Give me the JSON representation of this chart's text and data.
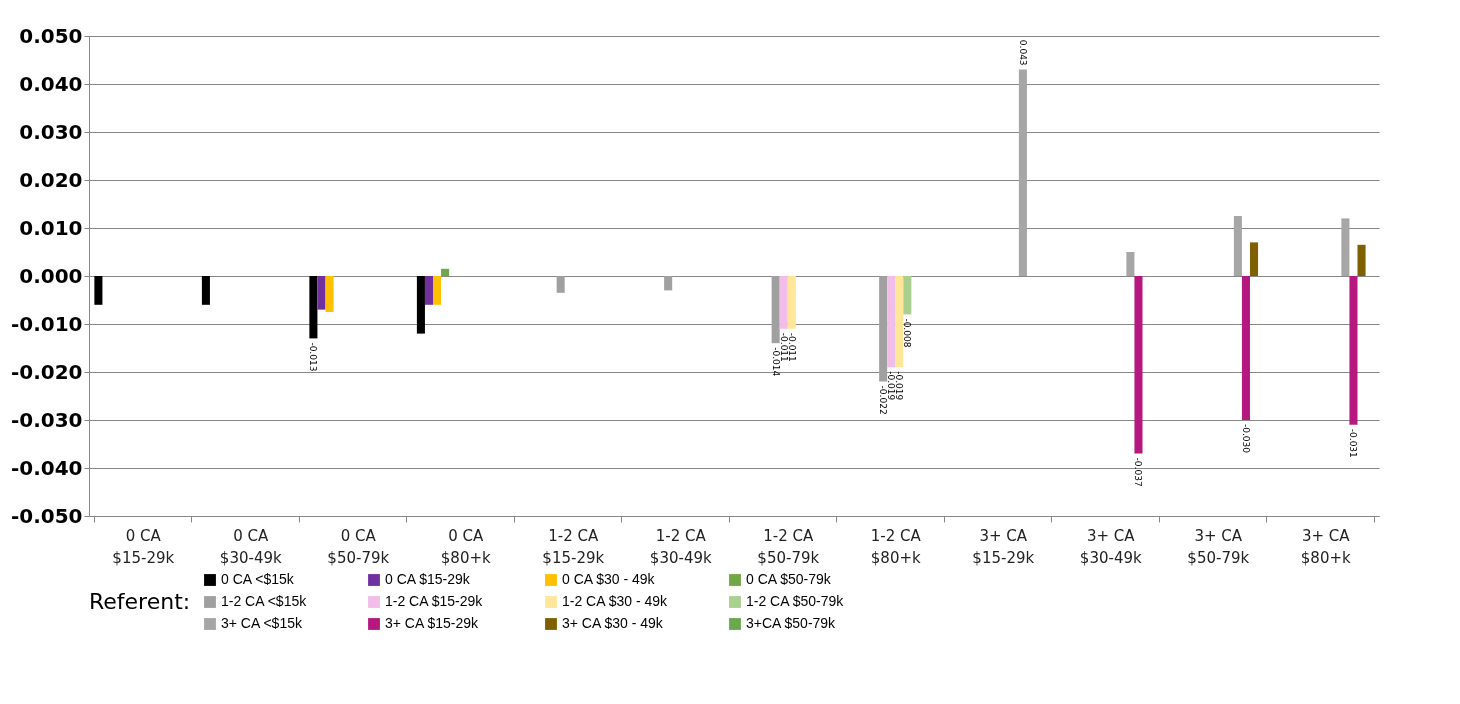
{
  "chart_data": {
    "type": "bar",
    "categories": [
      "0 CA $15-29k",
      "0 CA $30-49k",
      "0 CA $50-79k",
      "0 CA $80+k",
      "1-2 CA $15-29k",
      "1-2 CA $30-49k",
      "1-2 CA $50-79k",
      "1-2 CA $80+k",
      "3+ CA $15-29k",
      "3+ CA $30-49k",
      "3+ CA $50-79k",
      "3+ CA $80+k"
    ],
    "legend_title": "Referent:",
    "series": [
      {
        "name": "0 CA <$15k",
        "color": "#000000",
        "values": [
          -0.006,
          -0.006,
          -0.013,
          -0.012,
          null,
          null,
          null,
          null,
          null,
          null,
          null,
          null
        ],
        "value_labels": [
          null,
          null,
          "-0.013",
          null,
          null,
          null,
          null,
          null,
          null,
          null,
          null,
          null
        ]
      },
      {
        "name": "0 CA $15-29k",
        "color": "#7030a0",
        "values": [
          null,
          null,
          -0.007,
          -0.006,
          null,
          null,
          null,
          null,
          null,
          null,
          null,
          null
        ]
      },
      {
        "name": "0 CA $30 - 49k",
        "color": "#ffc000",
        "values": [
          null,
          null,
          -0.0075,
          -0.006,
          null,
          null,
          null,
          null,
          null,
          null,
          null,
          null
        ]
      },
      {
        "name": "0 CA $50-79k",
        "color": "#70a845",
        "values": [
          null,
          null,
          null,
          0.0015,
          null,
          null,
          null,
          null,
          null,
          null,
          null,
          null
        ]
      },
      {
        "name": "1-2 CA <$15k",
        "color": "#a0a0a0",
        "values": [
          null,
          null,
          null,
          null,
          -0.0035,
          -0.003,
          -0.014,
          -0.022,
          null,
          null,
          null,
          null
        ],
        "value_labels": [
          null,
          null,
          null,
          null,
          null,
          null,
          "-0.014",
          "-0.022",
          null,
          null,
          null,
          null
        ]
      },
      {
        "name": "1-2 CA $15-29k",
        "color": "#f2bde8",
        "values": [
          null,
          null,
          null,
          null,
          null,
          null,
          -0.011,
          -0.019,
          null,
          null,
          null,
          null
        ],
        "value_labels": [
          null,
          null,
          null,
          null,
          null,
          null,
          "-0.011",
          "-0.019",
          null,
          null,
          null,
          null
        ]
      },
      {
        "name": "1-2 CA $30 - 49k",
        "color": "#ffe699",
        "values": [
          null,
          null,
          null,
          null,
          null,
          null,
          -0.011,
          -0.019,
          null,
          null,
          null,
          null
        ],
        "value_labels": [
          null,
          null,
          null,
          null,
          null,
          null,
          "-0.011",
          "-0.019",
          null,
          null,
          null,
          null
        ]
      },
      {
        "name": "1-2 CA $50-79k",
        "color": "#a9d08e",
        "values": [
          null,
          null,
          null,
          null,
          null,
          null,
          null,
          -0.008,
          null,
          null,
          null,
          null
        ],
        "value_labels": [
          null,
          null,
          null,
          null,
          null,
          null,
          null,
          "-0.008",
          null,
          null,
          null,
          null
        ]
      },
      {
        "name": "3+ CA <$15k",
        "color": "#a6a6a6",
        "values": [
          null,
          null,
          null,
          null,
          null,
          null,
          null,
          null,
          0.043,
          0.005,
          0.0125,
          0.012
        ],
        "value_labels": [
          null,
          null,
          null,
          null,
          null,
          null,
          null,
          null,
          "0.043",
          null,
          null,
          null
        ]
      },
      {
        "name": "3+ CA $15-29k",
        "color": "#b5197f",
        "values": [
          null,
          null,
          null,
          null,
          null,
          null,
          null,
          null,
          null,
          -0.037,
          -0.03,
          -0.031
        ],
        "value_labels": [
          null,
          null,
          null,
          null,
          null,
          null,
          null,
          null,
          null,
          "-0.037",
          "-0.030",
          "-0.031"
        ]
      },
      {
        "name": "3+ CA $30 - 49k",
        "color": "#7f6000",
        "values": [
          null,
          null,
          null,
          null,
          null,
          null,
          null,
          null,
          null,
          null,
          0.007,
          0.0065
        ]
      },
      {
        "name": "3+CA $50-79k",
        "color": "#6aa84f",
        "values": [
          null,
          null,
          null,
          null,
          null,
          null,
          null,
          null,
          null,
          null,
          null,
          null
        ]
      }
    ],
    "ylim": [
      -0.05,
      0.05
    ],
    "yticks": [
      {
        "value": -0.05,
        "label": "-0.050"
      },
      {
        "value": -0.04,
        "label": "-0.040"
      },
      {
        "value": -0.03,
        "label": "-0.030"
      },
      {
        "value": -0.02,
        "label": "-0.020"
      },
      {
        "value": -0.01,
        "label": "-0.010"
      },
      {
        "value": 0,
        "label": "0.000"
      },
      {
        "value": 0.01,
        "label": "0.010"
      },
      {
        "value": 0.02,
        "label": "0.020"
      },
      {
        "value": 0.03,
        "label": "0.030"
      },
      {
        "value": 0.04,
        "label": "0.040"
      },
      {
        "value": 0.05,
        "label": "0.050"
      }
    ],
    "grid": "y",
    "legend": "bottom"
  }
}
